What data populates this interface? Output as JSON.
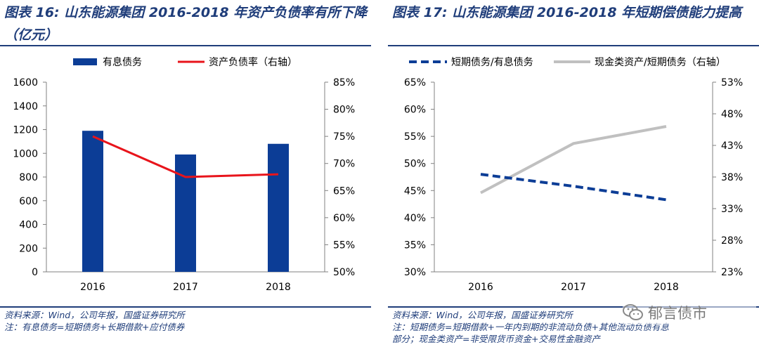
{
  "left": {
    "title_label": "图表 16:",
    "title_text": "山东能源集团 2016-2018 年资产负债率有所下降（亿元）",
    "notes": [
      "资料来源：Wind，公司年报，国盛证券研究所",
      "注：有息债务=短期债务+长期借款+应付债券"
    ]
  },
  "right": {
    "title_label": "图表 17:",
    "title_text": "山东能源集团 2016-2018 年短期偿债能力提高",
    "notes": [
      "资料来源：Wind，公司年报，国盛证券研究所",
      "注：短期债务=短期借款+一年内到期的非流动负债+其他流动负债有息",
      "部分；现金类资产=非受限货币资金+交易性金融资产"
    ]
  },
  "watermark": {
    "text": "郁言债市",
    "icon": "wechat-icon"
  },
  "colors": {
    "title": "#1f3d7a",
    "bar": "#0c3d96",
    "red_line": "#e8141b",
    "dash_line": "#0c3d96",
    "gray_line": "#c0c0c0"
  },
  "chart_data": [
    {
      "type": "bar",
      "categories": [
        "2016",
        "2017",
        "2018"
      ],
      "series": [
        {
          "name": "有息债务",
          "type": "bar",
          "axis": "left",
          "values": [
            1190,
            990,
            1080
          ]
        },
        {
          "name": "资产负债率（右轴）",
          "type": "line",
          "axis": "right",
          "values": [
            75.0,
            67.5,
            68.0
          ]
        }
      ],
      "ylim": [
        0,
        1600
      ],
      "yticks": [
        "0",
        "200",
        "400",
        "600",
        "800",
        "1000",
        "1200",
        "1400",
        "1600"
      ],
      "y2lim": [
        50,
        85
      ],
      "y2ticks": [
        "50%",
        "55%",
        "60%",
        "65%",
        "70%",
        "75%",
        "80%",
        "85%"
      ],
      "legend": "top",
      "grid": false
    },
    {
      "type": "line",
      "categories": [
        "2016",
        "2017",
        "2018"
      ],
      "series": [
        {
          "name": "短期债务/有息债务",
          "axis": "left",
          "style": "dashed",
          "values": [
            48.0,
            45.8,
            43.3
          ]
        },
        {
          "name": "现金类资产/短期债务（右轴）",
          "axis": "right",
          "style": "solid",
          "values": [
            35.5,
            43.3,
            46.0
          ]
        }
      ],
      "ylim": [
        30,
        65
      ],
      "yticks": [
        "30%",
        "35%",
        "40%",
        "45%",
        "50%",
        "55%",
        "60%",
        "65%"
      ],
      "y2lim": [
        23,
        53
      ],
      "y2ticks": [
        "23%",
        "28%",
        "33%",
        "38%",
        "43%",
        "48%",
        "53%"
      ],
      "legend": "top",
      "grid": false
    }
  ]
}
